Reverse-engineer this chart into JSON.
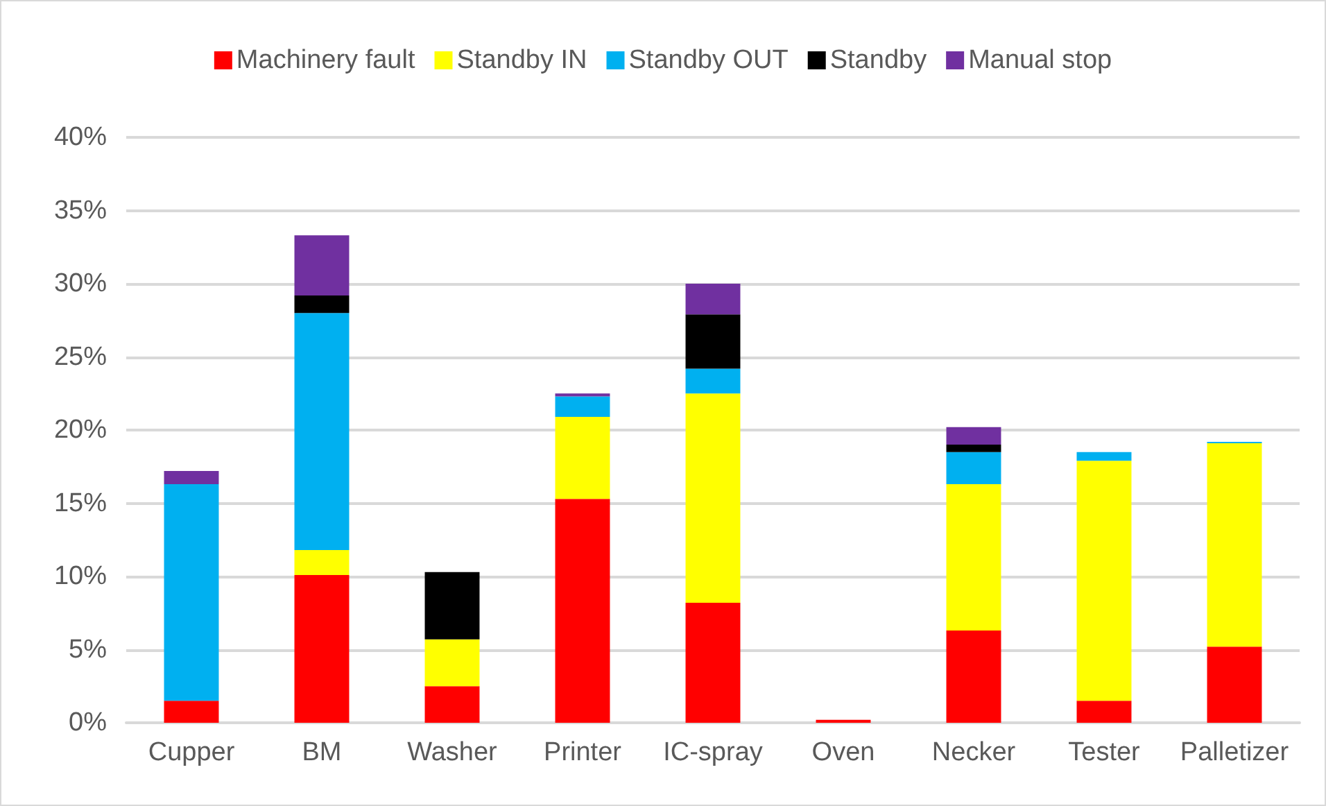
{
  "chart_data": {
    "type": "bar",
    "stacked": true,
    "grid": "y",
    "legend": "top",
    "categories": [
      "Cupper",
      "BM",
      "Washer",
      "Printer",
      "IC-spray",
      "Oven",
      "Necker",
      "Tester",
      "Palletizer"
    ],
    "series": [
      {
        "name": "Machinery fault",
        "color": "#ff0000",
        "values": [
          1.5,
          10.1,
          2.5,
          15.3,
          8.2,
          0.2,
          6.3,
          1.5,
          5.2
        ]
      },
      {
        "name": "Standby IN",
        "color": "#ffff00",
        "values": [
          0,
          1.7,
          3.2,
          5.6,
          14.3,
          0,
          10.0,
          16.4,
          13.9
        ]
      },
      {
        "name": "Standby OUT",
        "color": "#00b0f0",
        "values": [
          14.8,
          16.2,
          0,
          1.4,
          1.7,
          0,
          2.2,
          0.6,
          0.1
        ]
      },
      {
        "name": "Standby",
        "color": "#000000",
        "values": [
          0,
          1.2,
          4.6,
          0,
          3.7,
          0,
          0.5,
          0,
          0
        ]
      },
      {
        "name": "Manual stop",
        "color": "#7030a0",
        "values": [
          0.9,
          4.1,
          0,
          0.2,
          2.1,
          0,
          1.2,
          0,
          0
        ]
      }
    ],
    "ylim": [
      0,
      40
    ],
    "yticks": [
      {
        "value": 0,
        "label": "0%"
      },
      {
        "value": 5,
        "label": "5%"
      },
      {
        "value": 10,
        "label": "10%"
      },
      {
        "value": 15,
        "label": "15%"
      },
      {
        "value": 20,
        "label": "20%"
      },
      {
        "value": 25,
        "label": "25%"
      },
      {
        "value": 30,
        "label": "30%"
      },
      {
        "value": 35,
        "label": "35%"
      },
      {
        "value": 40,
        "label": "40%"
      }
    ]
  }
}
